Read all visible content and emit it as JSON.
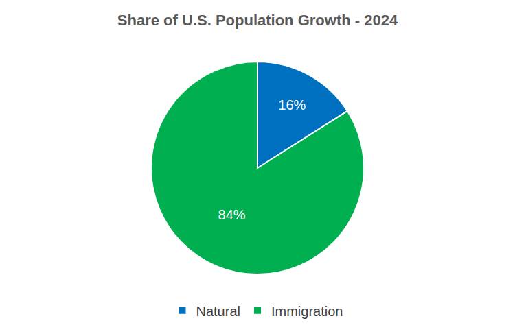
{
  "chart_data": {
    "type": "pie",
    "title": "Share of U.S. Population Growth - 2024",
    "categories": [
      "Natural",
      "Immigration"
    ],
    "values": [
      16,
      84
    ],
    "value_labels": [
      "16%",
      "84%"
    ],
    "colors": [
      "#0070c0",
      "#00b050"
    ],
    "data_labels": true,
    "legend": "bottom"
  }
}
